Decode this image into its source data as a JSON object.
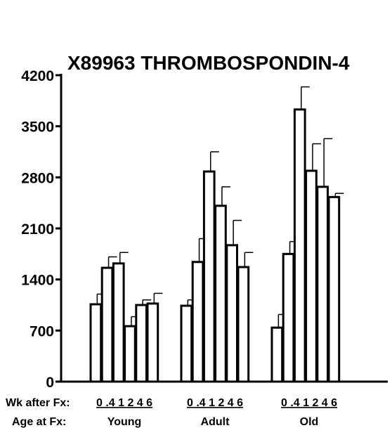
{
  "chart_data": {
    "type": "bar",
    "title": "X89963 THROMBOSPONDIN-4",
    "ylim": [
      0,
      4200
    ],
    "yticks": [
      0,
      700,
      1400,
      2100,
      2800,
      3500,
      4200
    ],
    "ytick_labels": [
      "0",
      "700",
      "1400",
      "2100",
      "2800",
      "3500",
      "4200"
    ],
    "grid": false,
    "x_row_labels": {
      "weeks_label": "Wk after Fx:",
      "age_label": "Age at Fx:"
    },
    "week_labels": [
      "0",
      ".4",
      "1",
      "2",
      "4",
      "6"
    ],
    "week_label_text": "0 .4 1 2 4 6",
    "groups": [
      {
        "name": "Young",
        "values": [
          1060,
          1560,
          1620,
          760,
          1050,
          1070
        ],
        "errors": [
          140,
          150,
          150,
          130,
          70,
          140
        ]
      },
      {
        "name": "Adult",
        "values": [
          1040,
          1640,
          2880,
          2410,
          1870,
          1570
        ],
        "errors": [
          80,
          320,
          270,
          260,
          340,
          200
        ]
      },
      {
        "name": "Old",
        "values": [
          740,
          1750,
          3730,
          2890,
          2670,
          2530
        ],
        "errors": [
          180,
          170,
          310,
          370,
          660,
          50
        ]
      }
    ],
    "bar_color": "#ffffff",
    "edge_color": "#000000"
  }
}
